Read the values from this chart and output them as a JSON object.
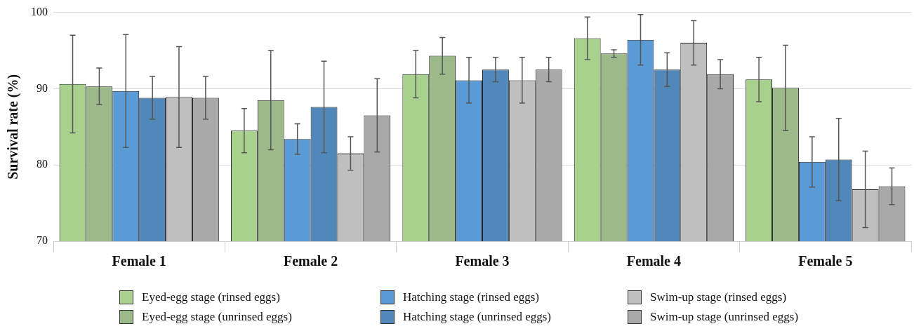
{
  "chart_data": {
    "type": "bar",
    "ylabel": "Survival rate (%)",
    "categories": [
      "Female 1",
      "Female 2",
      "Female 3",
      "Female 4",
      "Female 5"
    ],
    "series": [
      {
        "name": "Eyed-egg stage (rinsed eggs)",
        "color": "#a9d18e",
        "values": [
          90.6,
          84.5,
          91.9,
          96.6,
          91.2
        ],
        "errors": [
          6.4,
          2.9,
          3.1,
          2.8,
          2.9
        ]
      },
      {
        "name": "Eyed-egg stage (unrinsed eggs)",
        "color": "#9cba89",
        "values": [
          90.3,
          88.5,
          94.3,
          94.6,
          90.1
        ],
        "errors": [
          2.4,
          6.5,
          2.4,
          0.5,
          5.6
        ]
      },
      {
        "name": "Hatching stage (rinsed eggs)",
        "color": "#5b9bd5",
        "values": [
          89.7,
          83.4,
          91.1,
          96.4,
          80.4
        ],
        "errors": [
          7.4,
          2.0,
          3.0,
          3.3,
          3.3
        ]
      },
      {
        "name": "Hatching stage (unrinsed eggs)",
        "color": "#5089b9",
        "values": [
          88.8,
          87.6,
          92.5,
          92.5,
          80.7
        ],
        "errors": [
          2.8,
          6.0,
          1.6,
          2.2,
          5.4
        ]
      },
      {
        "name": "Swim-up stage (rinsed eggs)",
        "color": "#bfbfbf",
        "values": [
          88.9,
          81.5,
          91.1,
          96.0,
          76.8
        ],
        "errors": [
          6.6,
          2.2,
          3.0,
          2.9,
          5.0
        ]
      },
      {
        "name": "Swim-up stage (unrinsed eggs)",
        "color": "#a9a9a9",
        "values": [
          88.8,
          86.5,
          92.5,
          91.9,
          77.2
        ],
        "errors": [
          2.8,
          4.8,
          1.6,
          1.9,
          2.4
        ]
      }
    ],
    "ylim": [
      70,
      100
    ],
    "yticks": [
      70,
      80,
      90,
      100
    ],
    "grid": "y",
    "legend": "bottom"
  }
}
